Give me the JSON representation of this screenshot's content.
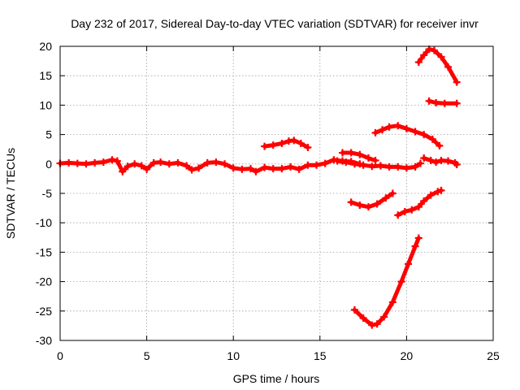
{
  "chart_data": {
    "type": "scatter",
    "title": "Day 232 of 2017, Sidereal Day-to-day VTEC variation (SDTVAR) for receiver invr",
    "xlabel": "GPS time / hours",
    "ylabel": "SDTVAR / TECUs",
    "xlim": [
      0,
      25
    ],
    "ylim": [
      -30,
      20
    ],
    "xticks": [
      0,
      5,
      10,
      15,
      20,
      25
    ],
    "yticks": [
      -30,
      -25,
      -20,
      -15,
      -10,
      -5,
      0,
      5,
      10,
      15,
      20
    ],
    "grid": true,
    "marker": "plus",
    "color": "#ff0000",
    "series": [
      {
        "points": [
          [
            0.0,
            0.1
          ],
          [
            0.5,
            0.2
          ],
          [
            1.0,
            0.1
          ],
          [
            1.5,
            0.0
          ],
          [
            2.0,
            0.2
          ],
          [
            2.5,
            0.3
          ],
          [
            3.0,
            0.7
          ],
          [
            3.3,
            0.5
          ],
          [
            3.6,
            -1.3
          ],
          [
            3.9,
            -0.4
          ],
          [
            4.3,
            0.0
          ],
          [
            4.7,
            -0.3
          ],
          [
            5.0,
            -0.9
          ],
          [
            5.4,
            0.2
          ],
          [
            5.8,
            0.3
          ],
          [
            6.3,
            0.0
          ],
          [
            6.8,
            0.2
          ],
          [
            7.3,
            -0.3
          ],
          [
            7.6,
            -1.0
          ],
          [
            8.0,
            -0.7
          ],
          [
            8.5,
            0.2
          ],
          [
            9.0,
            0.3
          ],
          [
            9.5,
            0.0
          ],
          [
            10.0,
            -0.7
          ],
          [
            10.5,
            -0.9
          ],
          [
            11.0,
            -0.8
          ],
          [
            11.3,
            -1.3
          ],
          [
            11.8,
            -0.6
          ],
          [
            12.3,
            -0.8
          ],
          [
            12.8,
            -0.8
          ],
          [
            13.3,
            -0.5
          ],
          [
            13.8,
            -0.9
          ],
          [
            14.3,
            -0.2
          ],
          [
            14.8,
            -0.2
          ],
          [
            15.3,
            0.1
          ],
          [
            15.8,
            0.7
          ],
          [
            16.3,
            0.5
          ],
          [
            16.8,
            0.4
          ],
          [
            17.3,
            0.0
          ]
        ]
      },
      {
        "points": [
          [
            11.8,
            3.0
          ],
          [
            12.3,
            3.2
          ],
          [
            12.8,
            3.5
          ],
          [
            13.2,
            3.9
          ],
          [
            13.5,
            4.0
          ],
          [
            13.9,
            3.5
          ],
          [
            14.3,
            2.8
          ]
        ]
      },
      {
        "points": [
          [
            16.3,
            1.9
          ],
          [
            16.8,
            1.9
          ],
          [
            17.3,
            1.6
          ],
          [
            17.8,
            1.0
          ],
          [
            18.2,
            0.6
          ]
        ]
      },
      {
        "points": [
          [
            16.0,
            0.5
          ],
          [
            16.5,
            0.3
          ],
          [
            17.0,
            0.0
          ],
          [
            17.5,
            -0.2
          ],
          [
            18.0,
            -0.4
          ],
          [
            18.5,
            -0.3
          ],
          [
            19.0,
            -0.5
          ],
          [
            19.5,
            -0.5
          ],
          [
            20.0,
            -0.7
          ],
          [
            20.5,
            -0.5
          ],
          [
            20.8,
            0.1
          ]
        ]
      },
      {
        "points": [
          [
            16.8,
            -6.5
          ],
          [
            17.3,
            -7.0
          ],
          [
            17.8,
            -7.3
          ],
          [
            18.3,
            -6.8
          ],
          [
            18.8,
            -5.8
          ],
          [
            19.2,
            -5.0
          ]
        ]
      },
      {
        "points": [
          [
            18.2,
            5.3
          ],
          [
            18.6,
            5.8
          ],
          [
            19.0,
            6.3
          ],
          [
            19.5,
            6.5
          ],
          [
            20.0,
            6.0
          ],
          [
            20.5,
            5.5
          ],
          [
            21.0,
            5.0
          ],
          [
            21.5,
            4.2
          ],
          [
            21.9,
            3.1
          ]
        ]
      },
      {
        "points": [
          [
            19.5,
            -8.7
          ],
          [
            19.9,
            -8.1
          ],
          [
            20.3,
            -7.8
          ],
          [
            20.7,
            -7.3
          ],
          [
            21.0,
            -6.3
          ],
          [
            21.4,
            -5.3
          ],
          [
            21.8,
            -4.7
          ],
          [
            22.0,
            -4.5
          ]
        ]
      },
      {
        "points": [
          [
            21.0,
            1.0
          ],
          [
            21.4,
            0.6
          ],
          [
            21.7,
            0.3
          ],
          [
            22.0,
            0.6
          ],
          [
            22.4,
            0.5
          ],
          [
            22.8,
            0.2
          ],
          [
            22.9,
            -0.1
          ]
        ]
      },
      {
        "points": [
          [
            20.7,
            17.3
          ],
          [
            21.0,
            18.5
          ],
          [
            21.3,
            19.5
          ],
          [
            21.6,
            19.3
          ],
          [
            22.0,
            18.2
          ],
          [
            22.4,
            16.5
          ],
          [
            22.9,
            13.9
          ]
        ]
      },
      {
        "points": [
          [
            21.3,
            10.7
          ],
          [
            21.7,
            10.4
          ],
          [
            22.2,
            10.3
          ],
          [
            22.9,
            10.3
          ]
        ]
      },
      {
        "points": [
          [
            17.0,
            -24.8
          ],
          [
            17.5,
            -26.2
          ],
          [
            18.0,
            -27.4
          ],
          [
            18.3,
            -27.2
          ],
          [
            18.7,
            -26.0
          ],
          [
            19.2,
            -23.5
          ],
          [
            19.7,
            -20.0
          ],
          [
            20.1,
            -17.0
          ],
          [
            20.5,
            -14.0
          ],
          [
            20.7,
            -12.6
          ]
        ]
      }
    ]
  }
}
